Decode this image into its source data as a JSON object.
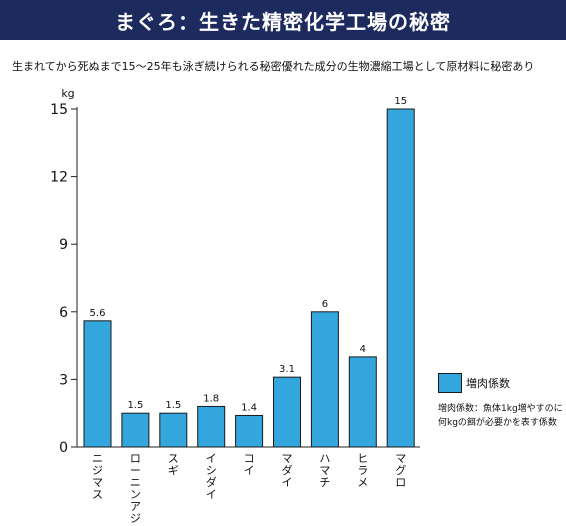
{
  "header": {
    "title": "まぐろ：生きた精密化学工場の秘密"
  },
  "subtitle": "生まれてから死ぬまで15～25年も泳ぎ続けられる秘密優れた成分の生物濃縮工場として原材料に秘密あり",
  "colors": {
    "bar": "#33a6dd",
    "title_bg": "#1d2a5e"
  },
  "chart_data": {
    "type": "bar",
    "categories": [
      "ニジマス",
      "ローニンアジ",
      "スギ",
      "イシダイ",
      "コイ",
      "マダイ",
      "ハマチ",
      "ヒラメ",
      "マグロ"
    ],
    "series": [
      {
        "name": "増肉係数",
        "values": [
          5.6,
          1.5,
          1.5,
          1.8,
          1.4,
          3.1,
          6,
          4,
          15
        ]
      }
    ],
    "value_labels": [
      "5.6",
      "1.5",
      "1.5",
      "1.8",
      "1.4",
      "3.1",
      "6",
      "4",
      "15"
    ],
    "ylabel": "kg",
    "ylim": [
      0,
      15
    ],
    "yticks": [
      0,
      3,
      6,
      9,
      12,
      15
    ],
    "grid": false,
    "legend": "right",
    "note": "増肉係数：魚体1kg増やすのに何kgの餌が必要かを表す係数"
  }
}
